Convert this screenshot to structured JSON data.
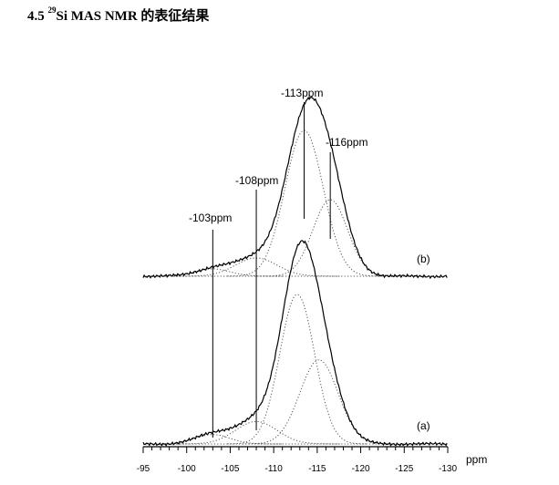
{
  "heading": {
    "number": "4.5",
    "isotope_mass": "29",
    "text": "Si MAS NMR 的表征结果"
  },
  "chart_data": {
    "type": "line",
    "xlabel": "ppm",
    "x_range": [
      -95,
      -130
    ],
    "x_ticks": [
      -95,
      -100,
      -105,
      -110,
      -115,
      -120,
      -125,
      -130
    ],
    "tick_labels": [
      "-95",
      "-100",
      "-105",
      "-110",
      "-115",
      "-120",
      "-125",
      "-130"
    ],
    "peak_labels": [
      {
        "text": "-103ppm",
        "ppm": -103
      },
      {
        "text": "-108ppm",
        "ppm": -108
      },
      {
        "text": "-113ppm",
        "ppm": -113.5
      },
      {
        "text": "-116ppm",
        "ppm": -116.5
      }
    ],
    "series": [
      {
        "name": "(b)",
        "components": [
          {
            "center": -103,
            "height": 0.04,
            "width": 2.0
          },
          {
            "center": -108,
            "height": 0.1,
            "width": 2.4
          },
          {
            "center": -113.5,
            "height": 0.8,
            "width": 2.2
          },
          {
            "center": -116.5,
            "height": 0.42,
            "width": 2.0
          }
        ]
      },
      {
        "name": "(a)",
        "components": [
          {
            "center": -103,
            "height": 0.05,
            "width": 2.0
          },
          {
            "center": -108,
            "height": 0.12,
            "width": 2.4
          },
          {
            "center": -112.7,
            "height": 0.8,
            "width": 2.0
          },
          {
            "center": -115.2,
            "height": 0.45,
            "width": 2.2
          }
        ]
      }
    ]
  }
}
